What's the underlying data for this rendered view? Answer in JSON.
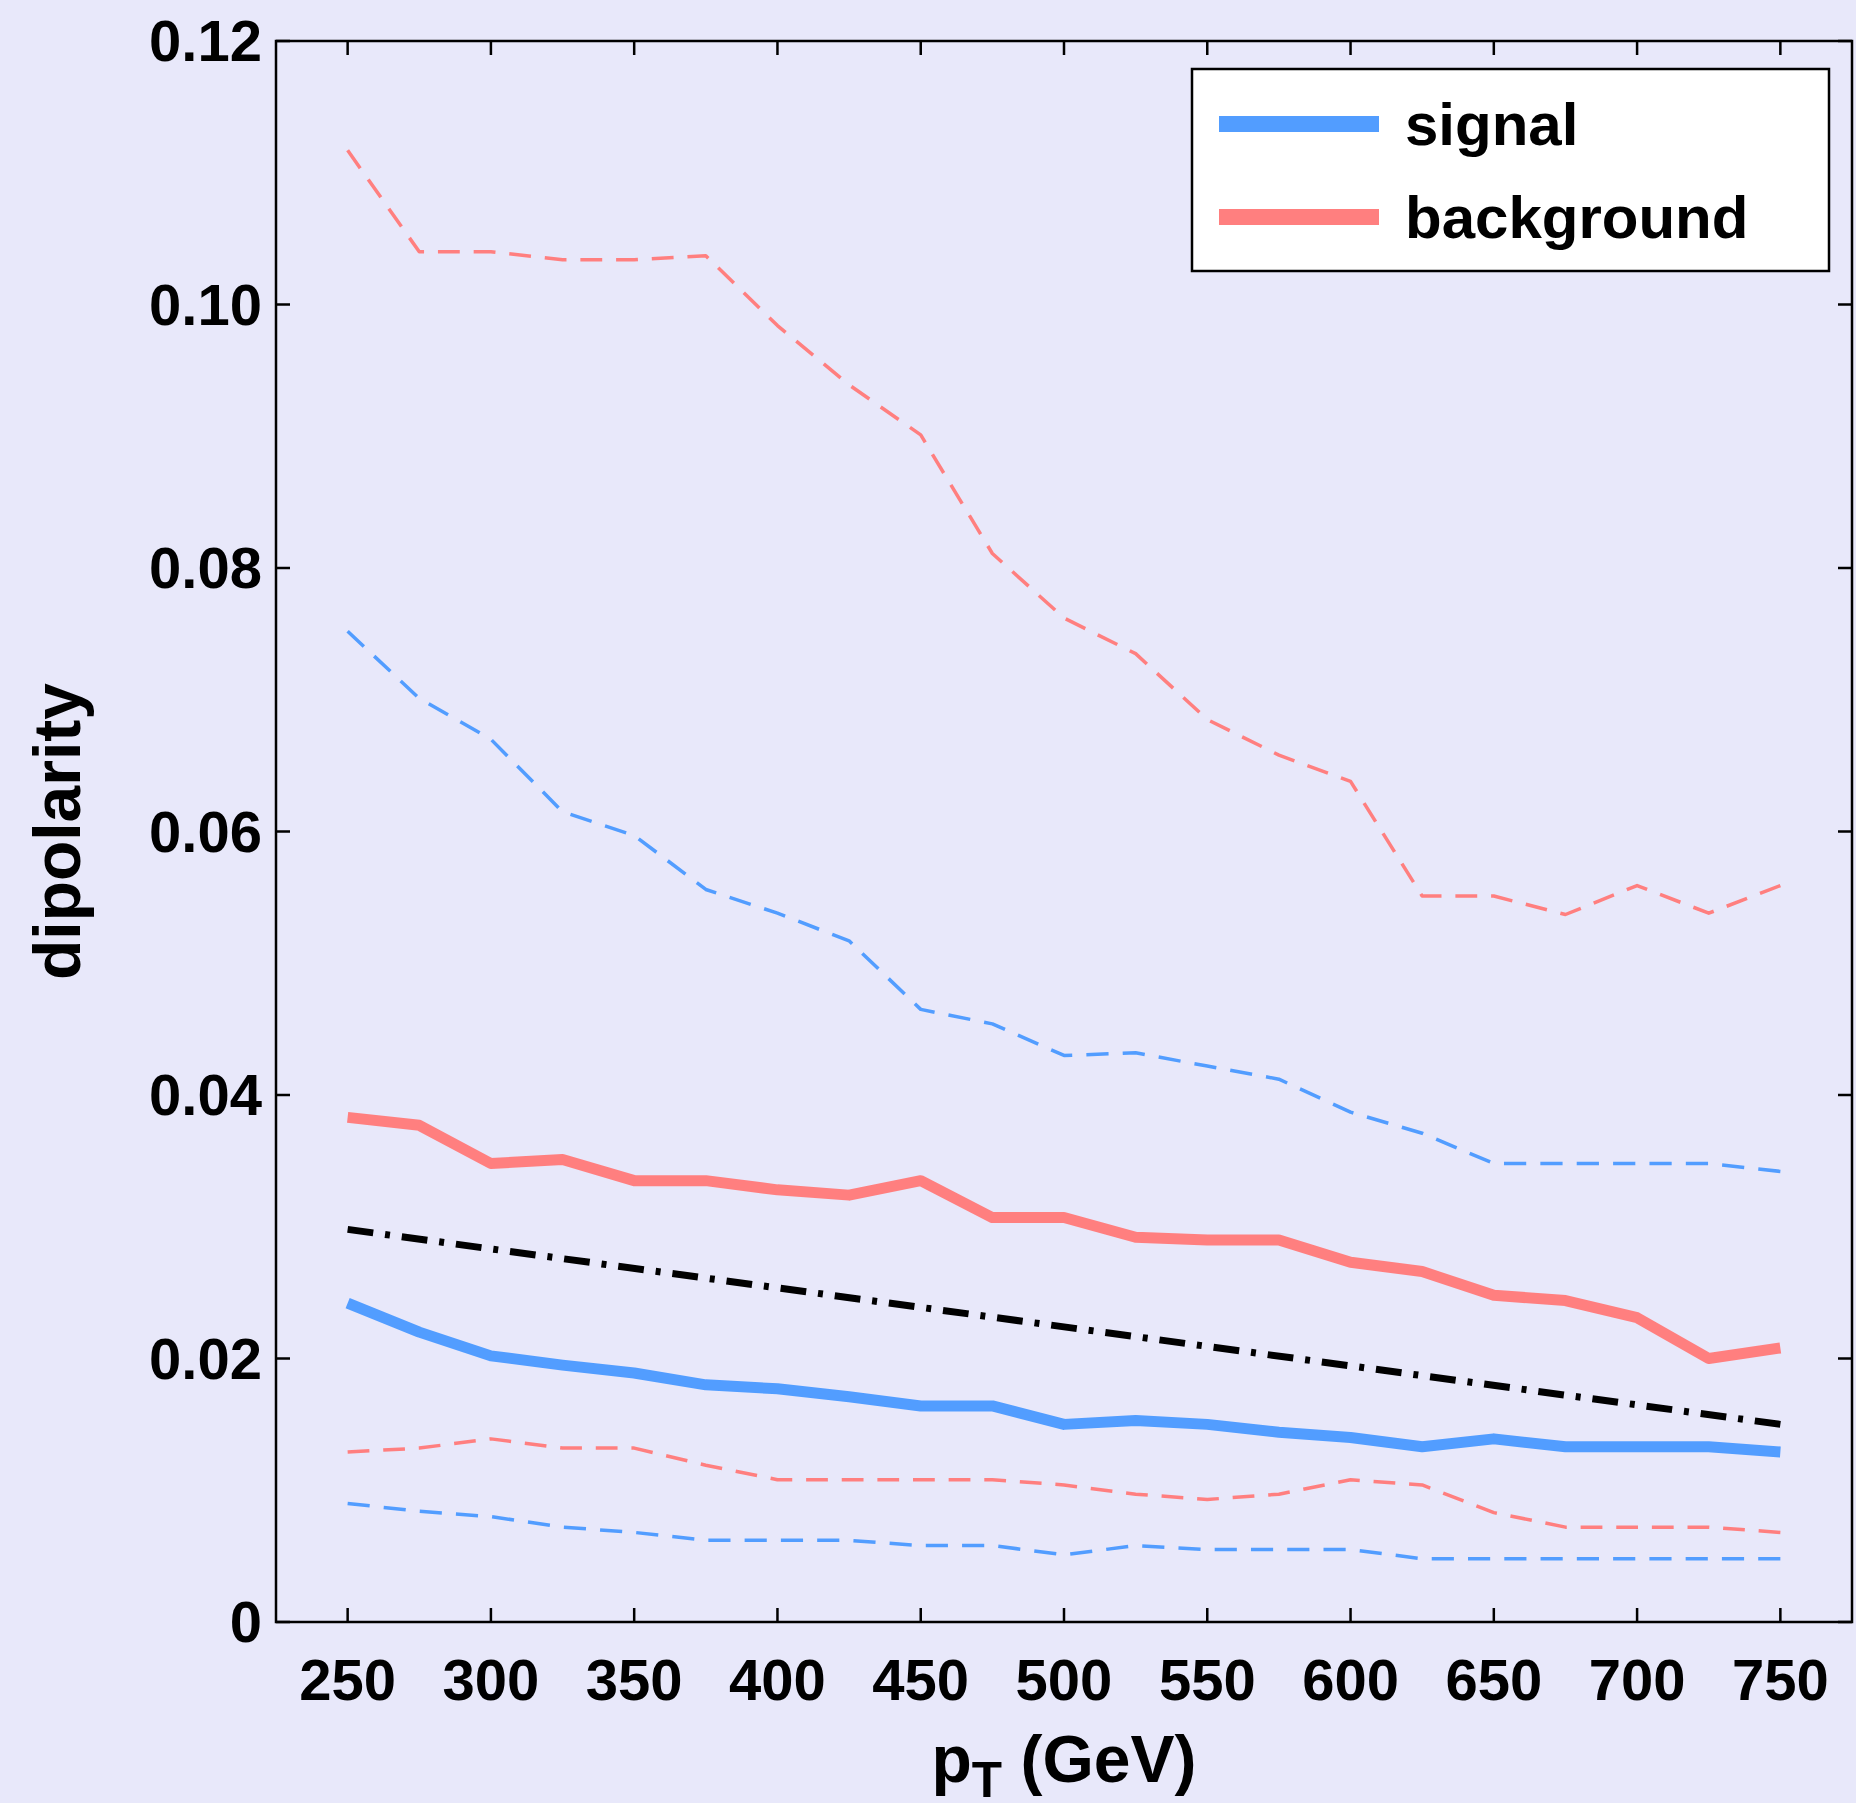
{
  "chart_data": {
    "type": "line",
    "xlabel": "p$_{T}$ (GeV)",
    "ylabel": "dipolarity",
    "x": [
      250,
      275,
      300,
      325,
      350,
      375,
      400,
      425,
      450,
      475,
      500,
      525,
      550,
      575,
      600,
      625,
      650,
      675,
      700,
      725,
      750
    ],
    "xlim": [
      225,
      775
    ],
    "xticks": [
      250,
      300,
      350,
      400,
      450,
      500,
      550,
      600,
      650,
      700,
      750
    ],
    "ylim": [
      0,
      0.12
    ],
    "yticks": [
      0,
      {
        "value": 0.02,
        "label": "0.02"
      },
      {
        "value": 0.04,
        "label": "0.04"
      },
      {
        "value": 0.06,
        "label": "0.06"
      },
      {
        "value": 0.08,
        "label": "0.08"
      },
      {
        "value": 0.1,
        "label": "0.10"
      },
      {
        "value": 0.12,
        "label": "0.12"
      }
    ],
    "grid": false,
    "legend": "top right",
    "marker": "none",
    "series": [
      {
        "name": "signal",
        "color": "#529dff",
        "line_style": "solid",
        "values": [
          0.0242,
          0.022,
          0.0202,
          0.0195,
          0.0189,
          0.018,
          0.0177,
          0.0171,
          0.0164,
          0.0164,
          0.015,
          0.0153,
          0.015,
          0.0144,
          0.014,
          0.0133,
          0.0139,
          0.0133,
          0.0133,
          0.0133,
          0.0129
        ]
      },
      {
        "name": "background",
        "color": "#ff7f7f",
        "line_style": "solid",
        "values": [
          0.0383,
          0.0377,
          0.0348,
          0.0351,
          0.0335,
          0.0335,
          0.0328,
          0.0324,
          0.0335,
          0.0307,
          0.0307,
          0.0292,
          0.029,
          0.029,
          0.0273,
          0.0266,
          0.0248,
          0.0244,
          0.0231,
          0.02,
          0.0208
        ]
      },
      {
        "color": "#000000",
        "line_style": "dashdot",
        "x": [
          250,
          750
        ],
        "values": [
          0.0298,
          0.015
        ]
      },
      {
        "color": "#529dff",
        "line_style": "dashed",
        "values": [
          0.0752,
          0.0701,
          0.067,
          0.0615,
          0.0597,
          0.0556,
          0.0538,
          0.0517,
          0.0465,
          0.0454,
          0.043,
          0.0432,
          0.0422,
          0.0412,
          0.0387,
          0.0371,
          0.0348,
          0.0348,
          0.0348,
          0.0348,
          0.0342
        ]
      },
      {
        "color": "#ff7f7f",
        "line_style": "dashed",
        "values": [
          0.1117,
          0.104,
          0.104,
          0.1034,
          0.1034,
          0.1037,
          0.0984,
          0.0939,
          0.0901,
          0.0811,
          0.0762,
          0.0735,
          0.0685,
          0.0658,
          0.0638,
          0.0551,
          0.0551,
          0.0537,
          0.0559,
          0.0538,
          0.0559
        ]
      },
      {
        "color": "#ff7f7f",
        "line_style": "dashed",
        "values": [
          0.0129,
          0.0132,
          0.0139,
          0.0132,
          0.0132,
          0.0119,
          0.0108,
          0.0108,
          0.0108,
          0.0108,
          0.0104,
          0.0097,
          0.0093,
          0.0097,
          0.0108,
          0.0104,
          0.0083,
          0.0072,
          0.0072,
          0.0072,
          0.0068
        ]
      },
      {
        "color": "#529dff",
        "line_style": "dashed",
        "values": [
          0.009,
          0.0084,
          0.008,
          0.0072,
          0.0068,
          0.0062,
          0.0062,
          0.0062,
          0.0058,
          0.0058,
          0.0051,
          0.0058,
          0.0055,
          0.0055,
          0.0055,
          0.0048,
          0.0048,
          0.0048,
          0.0048,
          0.0048,
          0.0048
        ]
      }
    ]
  }
}
